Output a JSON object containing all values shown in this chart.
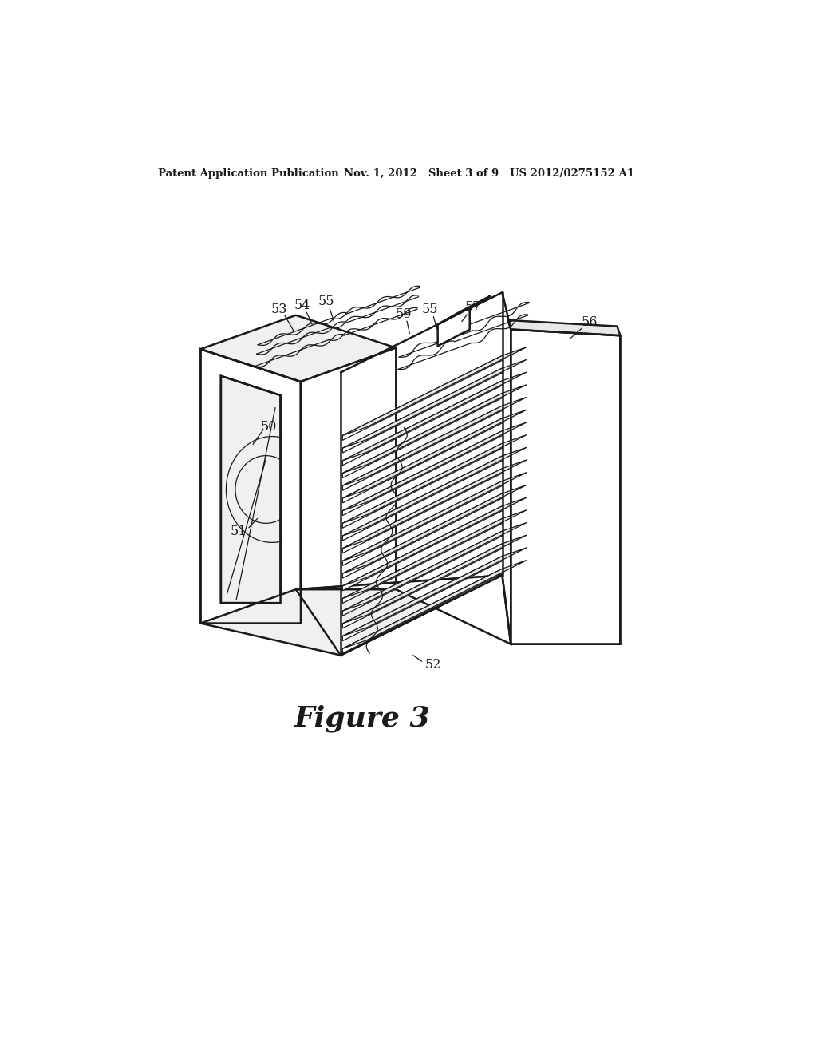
{
  "background_color": "#ffffff",
  "line_color": "#1a1a1a",
  "lw_main": 1.8,
  "lw_thin": 0.9,
  "header_left": "Patent Application Publication",
  "header_mid": "Nov. 1, 2012   Sheet 3 of 9",
  "header_right": "US 2012/0275152 A1",
  "figure_label": "Figure 3",
  "n_fins": 18
}
